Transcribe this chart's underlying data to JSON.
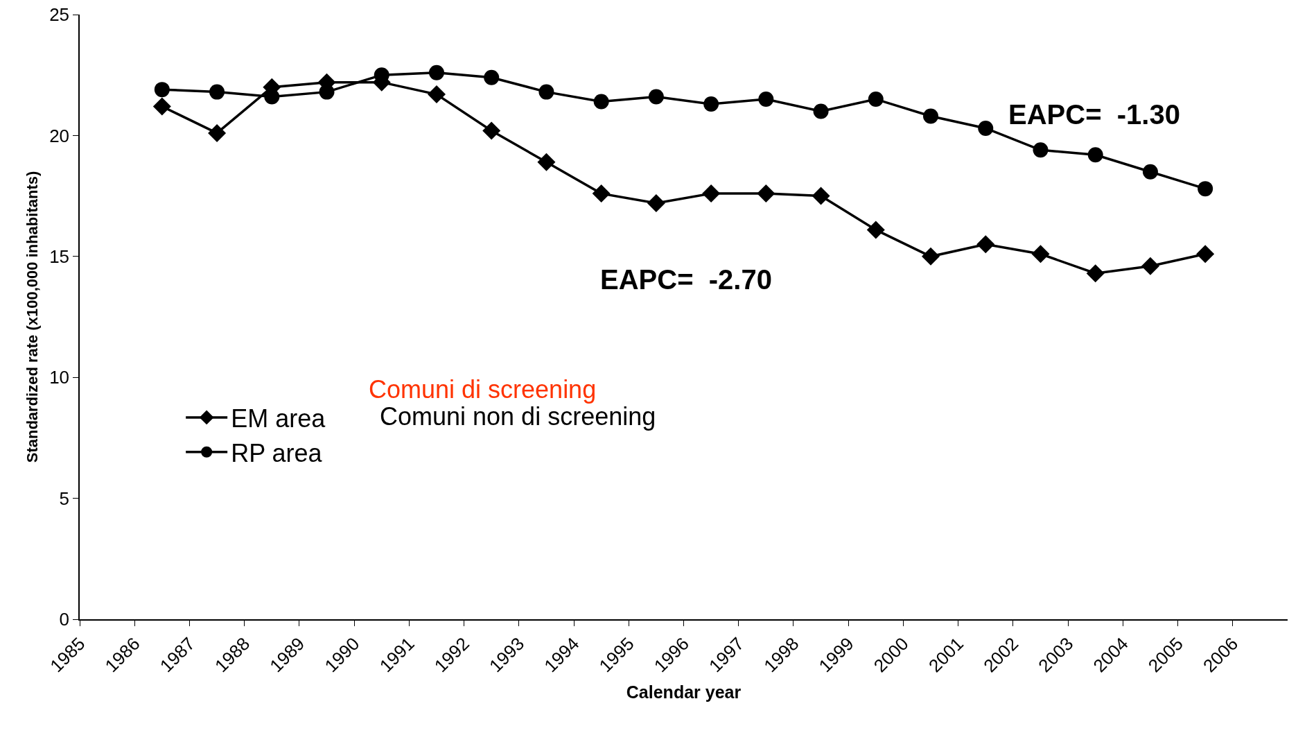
{
  "chart_data": {
    "type": "line",
    "xlabel": "Calendar year",
    "ylabel": "Standardized rate (x100,000 inhabitants)",
    "x": [
      1986.5,
      1987.5,
      1988.5,
      1989.5,
      1990.5,
      1991.5,
      1992.5,
      1993.5,
      1994.5,
      1995.5,
      1996.5,
      1997.5,
      1998.5,
      1999.5,
      2000.5,
      2001.5,
      2002.5,
      2003.5,
      2004.5,
      2005.5
    ],
    "series": [
      {
        "name": "EM area",
        "color": "#000000",
        "marker": "diamond",
        "values": [
          21.2,
          20.1,
          22.0,
          22.2,
          22.2,
          21.7,
          20.2,
          18.9,
          17.6,
          17.2,
          17.6,
          17.6,
          17.5,
          16.1,
          15.0,
          15.5,
          15.1,
          14.3,
          14.6,
          15.1
        ]
      },
      {
        "name": "RP area",
        "color": "#000000",
        "marker": "circle",
        "values": [
          21.9,
          21.8,
          21.6,
          21.8,
          22.5,
          22.6,
          22.4,
          21.8,
          21.4,
          21.6,
          21.3,
          21.5,
          21.0,
          21.5,
          20.8,
          20.3,
          19.4,
          19.2,
          18.5,
          17.8
        ]
      }
    ],
    "xlim": [
      1985,
      2007
    ],
    "xticks": [
      1985,
      1986,
      1987,
      1988,
      1989,
      1990,
      1991,
      1992,
      1993,
      1994,
      1995,
      1996,
      1997,
      1998,
      1999,
      2000,
      2001,
      2002,
      2003,
      2004,
      2005,
      2006
    ],
    "ylim": [
      0,
      25
    ],
    "yticks": [
      0,
      5,
      10,
      15,
      20,
      25
    ],
    "grid": false,
    "legend": "left",
    "line_style": "solid",
    "annotations": [
      "EAPC=  -1.30",
      "EAPC=  -2.70",
      "Comuni di screening",
      "Comuni non di screening"
    ]
  }
}
